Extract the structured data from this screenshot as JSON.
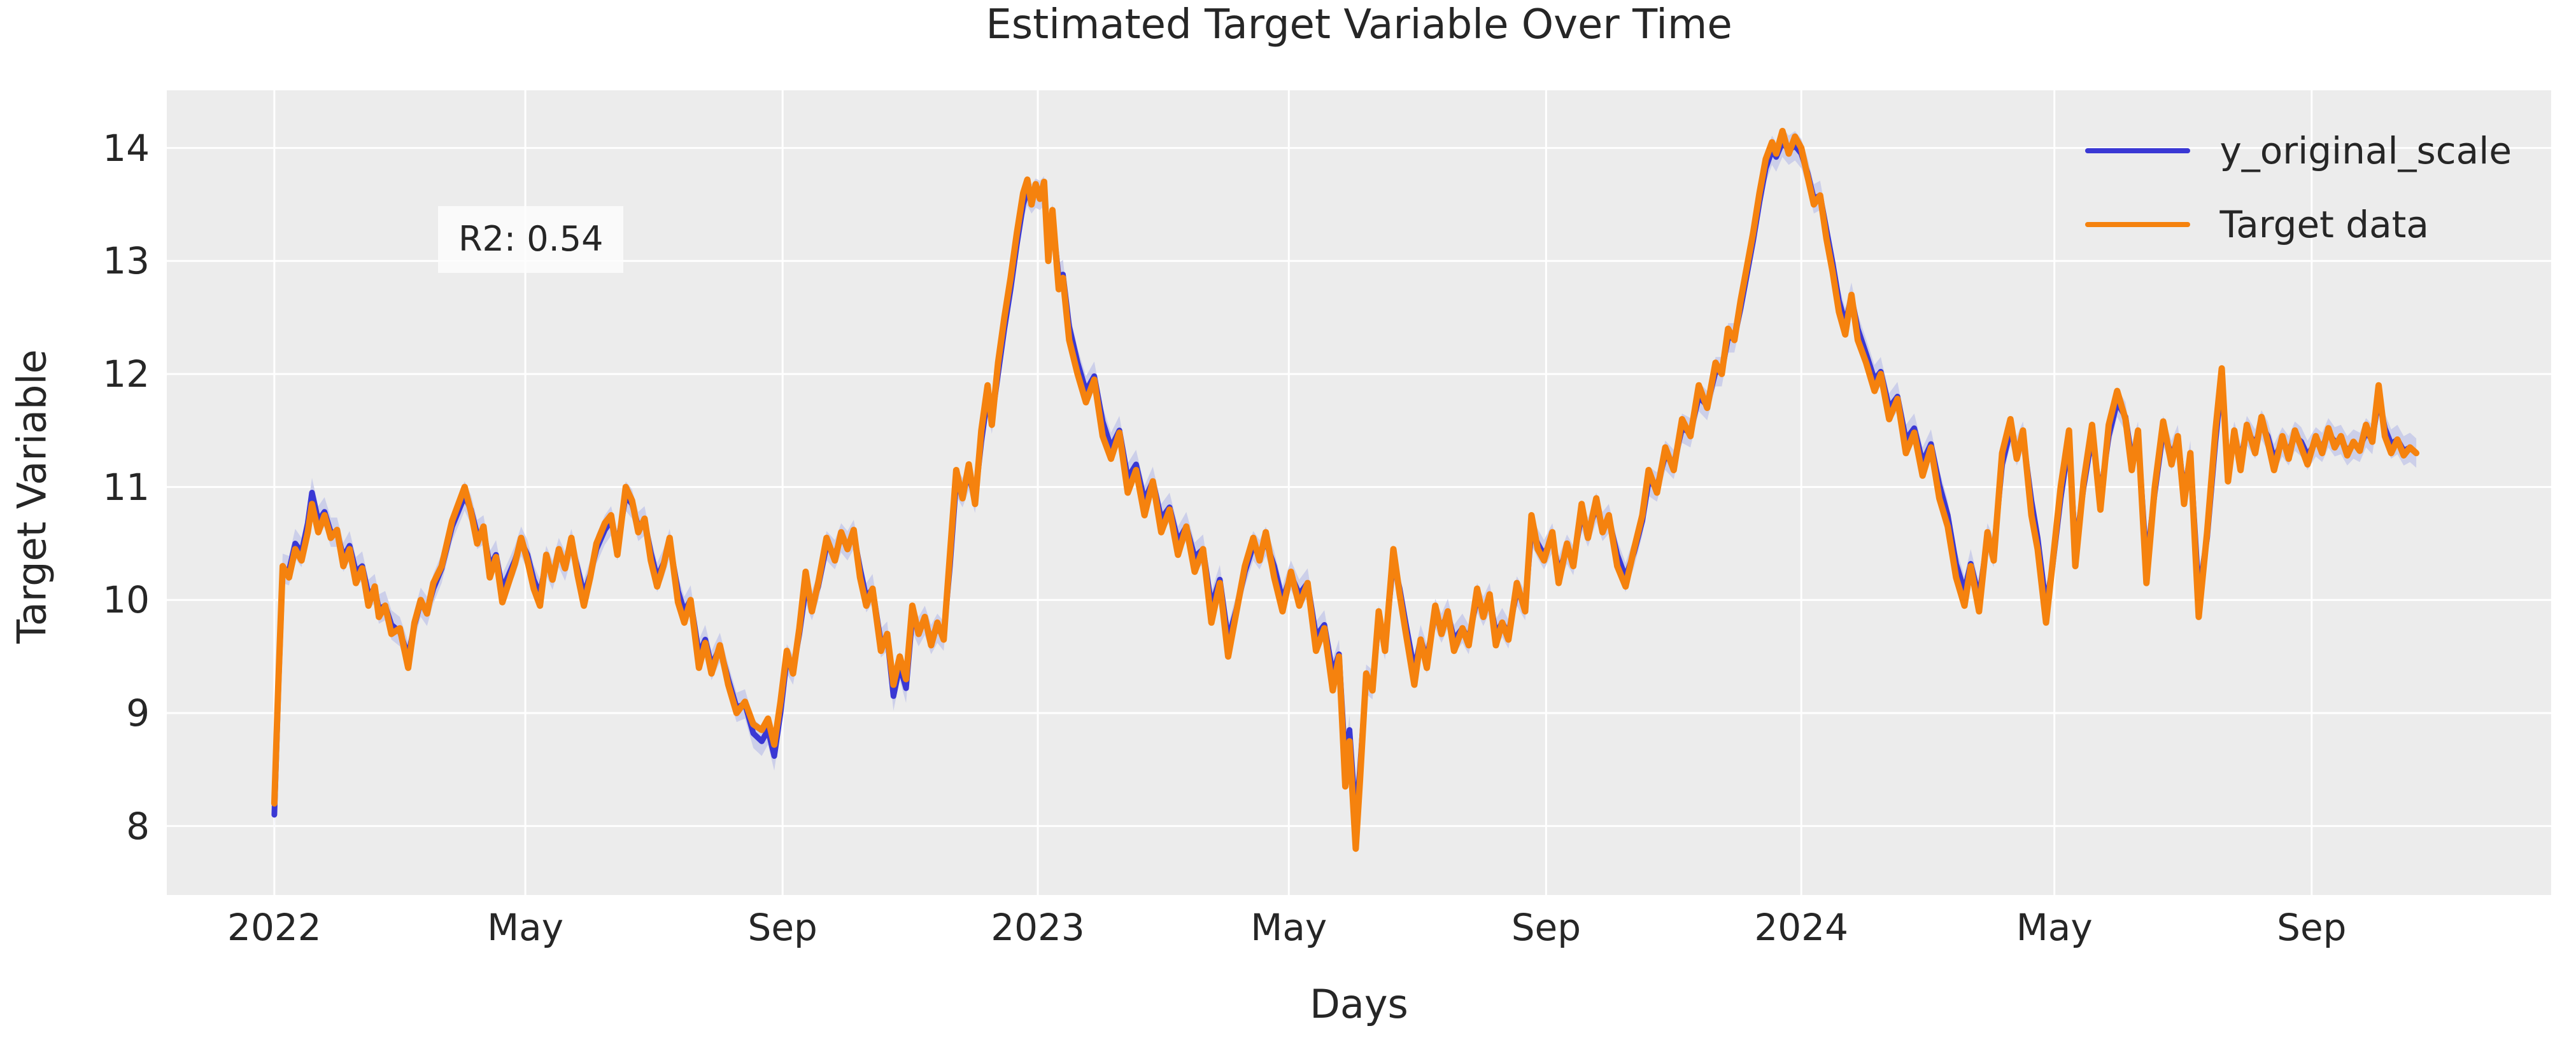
{
  "chart_data": {
    "type": "line",
    "title": "Estimated Target Variable Over Time",
    "xlabel": "Days",
    "ylabel": "Target Variable",
    "annotation": "R2: 0.54",
    "grid": true,
    "legend_position": "upper right",
    "plot_bg_color": "#ececec",
    "grid_color": "#ffffff",
    "text_color": "#262626",
    "ylim": [
      7.39,
      14.51
    ],
    "xlim_days": [
      -51.4,
      1088.5
    ],
    "y_ticks": [
      8,
      9,
      10,
      11,
      12,
      13,
      14
    ],
    "x_ticks": [
      {
        "day": 0,
        "label": "2022"
      },
      {
        "day": 120,
        "label": "May"
      },
      {
        "day": 243,
        "label": "Sep"
      },
      {
        "day": 365,
        "label": "2023"
      },
      {
        "day": 485,
        "label": "May"
      },
      {
        "day": 608,
        "label": "Sep"
      },
      {
        "day": 730,
        "label": "2024"
      },
      {
        "day": 851,
        "label": "May"
      },
      {
        "day": 974,
        "label": "Sep"
      }
    ],
    "series": [
      {
        "name": "y_original_scale",
        "color": "#3a38d4",
        "band": {
          "color": "#c9cce9",
          "opacity": 0.9,
          "halfwidth": 0.13
        }
      },
      {
        "name": "Target data",
        "color": "#f5820e"
      }
    ],
    "points_format": [
      "day_since_2022_01_01",
      "target_data",
      "y_original_scale"
    ],
    "points": [
      [
        0,
        8.2,
        8.1
      ],
      [
        2,
        9.3,
        9.25
      ],
      [
        4,
        10.3,
        10.28
      ],
      [
        7,
        10.2,
        10.26
      ],
      [
        10,
        10.45,
        10.5
      ],
      [
        13,
        10.35,
        10.42
      ],
      [
        16,
        10.6,
        10.68
      ],
      [
        18,
        10.85,
        10.95
      ],
      [
        21,
        10.6,
        10.7
      ],
      [
        24,
        10.75,
        10.78
      ],
      [
        27,
        10.55,
        10.6
      ],
      [
        30,
        10.62,
        10.6
      ],
      [
        33,
        10.3,
        10.38
      ],
      [
        36,
        10.45,
        10.48
      ],
      [
        39,
        10.15,
        10.25
      ],
      [
        42,
        10.28,
        10.3
      ],
      [
        45,
        9.95,
        10.05
      ],
      [
        48,
        10.12,
        10.1
      ],
      [
        50,
        9.85,
        9.92
      ],
      [
        53,
        9.95,
        9.95
      ],
      [
        56,
        9.7,
        9.78
      ],
      [
        60,
        9.75,
        9.72
      ],
      [
        64,
        9.4,
        9.5
      ],
      [
        67,
        9.8,
        9.78
      ],
      [
        70,
        10.0,
        9.98
      ],
      [
        73,
        9.88,
        9.9
      ],
      [
        76,
        10.15,
        10.1
      ],
      [
        80,
        10.3,
        10.28
      ],
      [
        85,
        10.7,
        10.65
      ],
      [
        91,
        11.0,
        10.92
      ],
      [
        94,
        10.78,
        10.8
      ],
      [
        97,
        10.5,
        10.58
      ],
      [
        100,
        10.65,
        10.62
      ],
      [
        103,
        10.2,
        10.3
      ],
      [
        106,
        10.38,
        10.4
      ],
      [
        109,
        9.98,
        10.1
      ],
      [
        112,
        10.15,
        10.22
      ],
      [
        115,
        10.32,
        10.35
      ],
      [
        118,
        10.55,
        10.52
      ],
      [
        121,
        10.35,
        10.4
      ],
      [
        124,
        10.1,
        10.18
      ],
      [
        127,
        9.95,
        10.05
      ],
      [
        130,
        10.4,
        10.35
      ],
      [
        133,
        10.18,
        10.22
      ],
      [
        136,
        10.45,
        10.42
      ],
      [
        139,
        10.28,
        10.3
      ],
      [
        142,
        10.55,
        10.5
      ],
      [
        145,
        10.22,
        10.28
      ],
      [
        148,
        9.95,
        10.05
      ],
      [
        151,
        10.2,
        10.22
      ],
      [
        154,
        10.5,
        10.45
      ],
      [
        158,
        10.68,
        10.62
      ],
      [
        161,
        10.75,
        10.7
      ],
      [
        164,
        10.4,
        10.48
      ],
      [
        168,
        11.0,
        10.92
      ],
      [
        171,
        10.88,
        10.85
      ],
      [
        174,
        10.6,
        10.65
      ],
      [
        177,
        10.72,
        10.7
      ],
      [
        180,
        10.35,
        10.42
      ],
      [
        183,
        10.12,
        10.2
      ],
      [
        186,
        10.3,
        10.32
      ],
      [
        189,
        10.55,
        10.5
      ],
      [
        193,
        9.98,
        10.08
      ],
      [
        196,
        9.8,
        9.9
      ],
      [
        199,
        10.0,
        10.0
      ],
      [
        203,
        9.4,
        9.52
      ],
      [
        206,
        9.62,
        9.65
      ],
      [
        209,
        9.35,
        9.42
      ],
      [
        213,
        9.6,
        9.58
      ],
      [
        217,
        9.25,
        9.3
      ],
      [
        221,
        9.0,
        9.05
      ],
      [
        225,
        9.1,
        9.08
      ],
      [
        229,
        8.9,
        8.82
      ],
      [
        233,
        8.85,
        8.75
      ],
      [
        236,
        8.95,
        8.85
      ],
      [
        239,
        8.72,
        8.62
      ],
      [
        242,
        9.1,
        9.0
      ],
      [
        245,
        9.55,
        9.48
      ],
      [
        248,
        9.35,
        9.38
      ],
      [
        251,
        9.75,
        9.7
      ],
      [
        254,
        10.25,
        10.1
      ],
      [
        257,
        9.9,
        9.95
      ],
      [
        260,
        10.15,
        10.12
      ],
      [
        264,
        10.55,
        10.48
      ],
      [
        268,
        10.35,
        10.4
      ],
      [
        271,
        10.6,
        10.55
      ],
      [
        274,
        10.45,
        10.48
      ],
      [
        277,
        10.62,
        10.58
      ],
      [
        280,
        10.2,
        10.28
      ],
      [
        283,
        9.95,
        10.02
      ],
      [
        286,
        10.1,
        10.1
      ],
      [
        290,
        9.55,
        9.62
      ],
      [
        293,
        9.7,
        9.68
      ],
      [
        296,
        9.25,
        9.15
      ],
      [
        299,
        9.5,
        9.42
      ],
      [
        302,
        9.3,
        9.22
      ],
      [
        305,
        9.95,
        9.85
      ],
      [
        308,
        9.7,
        9.72
      ],
      [
        311,
        9.85,
        9.82
      ],
      [
        314,
        9.6,
        9.65
      ],
      [
        317,
        9.8,
        9.75
      ],
      [
        320,
        9.65,
        9.68
      ],
      [
        323,
        10.4,
        10.3
      ],
      [
        326,
        11.15,
        11.05
      ],
      [
        329,
        10.9,
        10.95
      ],
      [
        332,
        11.2,
        11.1
      ],
      [
        335,
        10.85,
        10.9
      ],
      [
        338,
        11.5,
        11.4
      ],
      [
        341,
        11.9,
        11.8
      ],
      [
        343,
        11.55,
        11.6
      ],
      [
        346,
        12.1,
        12.0
      ],
      [
        349,
        12.5,
        12.4
      ],
      [
        352,
        12.85,
        12.75
      ],
      [
        355,
        13.25,
        13.15
      ],
      [
        358,
        13.6,
        13.5
      ],
      [
        360,
        13.72,
        13.62
      ],
      [
        362,
        13.5,
        13.55
      ],
      [
        364,
        13.68,
        13.6
      ],
      [
        366,
        13.55,
        13.58
      ],
      [
        368,
        13.7,
        13.62
      ],
      [
        370,
        13.0,
        13.1
      ],
      [
        372,
        13.45,
        13.38
      ],
      [
        375,
        12.75,
        12.85
      ],
      [
        377,
        12.85,
        12.88
      ],
      [
        380,
        12.3,
        12.42
      ],
      [
        384,
        12.0,
        12.1
      ],
      [
        388,
        11.75,
        11.85
      ],
      [
        392,
        11.95,
        11.98
      ],
      [
        396,
        11.45,
        11.58
      ],
      [
        400,
        11.25,
        11.35
      ],
      [
        404,
        11.48,
        11.5
      ],
      [
        408,
        10.95,
        11.08
      ],
      [
        412,
        11.15,
        11.2
      ],
      [
        416,
        10.75,
        10.88
      ],
      [
        420,
        11.05,
        11.05
      ],
      [
        424,
        10.6,
        10.72
      ],
      [
        428,
        10.8,
        10.82
      ],
      [
        432,
        10.4,
        10.52
      ],
      [
        436,
        10.65,
        10.65
      ],
      [
        440,
        10.25,
        10.38
      ],
      [
        444,
        10.45,
        10.45
      ],
      [
        448,
        9.8,
        9.95
      ],
      [
        452,
        10.15,
        10.18
      ],
      [
        456,
        9.5,
        9.65
      ],
      [
        460,
        9.9,
        9.92
      ],
      [
        464,
        10.3,
        10.25
      ],
      [
        468,
        10.55,
        10.48
      ],
      [
        471,
        10.35,
        10.4
      ],
      [
        474,
        10.6,
        10.52
      ],
      [
        478,
        10.2,
        10.3
      ],
      [
        482,
        9.9,
        10.0
      ],
      [
        486,
        10.25,
        10.22
      ],
      [
        490,
        9.95,
        10.05
      ],
      [
        494,
        10.15,
        10.15
      ],
      [
        498,
        9.55,
        9.68
      ],
      [
        502,
        9.75,
        9.78
      ],
      [
        506,
        9.2,
        9.35
      ],
      [
        509,
        9.5,
        9.52
      ],
      [
        512,
        8.35,
        8.55
      ],
      [
        514,
        8.75,
        8.85
      ],
      [
        517,
        7.8,
        8.05
      ],
      [
        519,
        8.4,
        8.5
      ],
      [
        522,
        9.35,
        9.3
      ],
      [
        525,
        9.2,
        9.25
      ],
      [
        528,
        9.9,
        9.82
      ],
      [
        531,
        9.55,
        9.6
      ],
      [
        535,
        10.45,
        10.35
      ],
      [
        538,
        10.05,
        10.1
      ],
      [
        541,
        9.7,
        9.78
      ],
      [
        545,
        9.25,
        9.38
      ],
      [
        548,
        9.65,
        9.65
      ],
      [
        551,
        9.4,
        9.48
      ],
      [
        555,
        9.95,
        9.88
      ],
      [
        558,
        9.7,
        9.75
      ],
      [
        561,
        9.9,
        9.88
      ],
      [
        564,
        9.55,
        9.65
      ],
      [
        568,
        9.75,
        9.75
      ],
      [
        571,
        9.6,
        9.65
      ],
      [
        575,
        10.1,
        10.02
      ],
      [
        578,
        9.85,
        9.9
      ],
      [
        581,
        10.05,
        10.02
      ],
      [
        584,
        9.6,
        9.7
      ],
      [
        587,
        9.8,
        9.8
      ],
      [
        590,
        9.65,
        9.7
      ],
      [
        594,
        10.15,
        10.08
      ],
      [
        598,
        9.9,
        9.95
      ],
      [
        601,
        10.75,
        10.62
      ],
      [
        604,
        10.45,
        10.5
      ],
      [
        607,
        10.35,
        10.4
      ],
      [
        611,
        10.6,
        10.55
      ],
      [
        614,
        10.15,
        10.25
      ],
      [
        618,
        10.5,
        10.45
      ],
      [
        621,
        10.3,
        10.35
      ],
      [
        625,
        10.85,
        10.75
      ],
      [
        628,
        10.55,
        10.6
      ],
      [
        632,
        10.9,
        10.82
      ],
      [
        635,
        10.6,
        10.65
      ],
      [
        638,
        10.75,
        10.72
      ],
      [
        642,
        10.3,
        10.4
      ],
      [
        646,
        10.12,
        10.2
      ],
      [
        650,
        10.45,
        10.42
      ],
      [
        654,
        10.75,
        10.7
      ],
      [
        657,
        11.15,
        11.05
      ],
      [
        661,
        10.95,
        11.0
      ],
      [
        665,
        11.35,
        11.28
      ],
      [
        669,
        11.15,
        11.2
      ],
      [
        673,
        11.6,
        11.52
      ],
      [
        677,
        11.45,
        11.48
      ],
      [
        681,
        11.9,
        11.8
      ],
      [
        685,
        11.7,
        11.72
      ],
      [
        689,
        12.1,
        12.02
      ],
      [
        692,
        12.0,
        12.02
      ],
      [
        695,
        12.4,
        12.32
      ],
      [
        698,
        12.3,
        12.32
      ],
      [
        701,
        12.65,
        12.58
      ],
      [
        704,
        12.95,
        12.88
      ],
      [
        707,
        13.25,
        13.18
      ],
      [
        710,
        13.6,
        13.52
      ],
      [
        713,
        13.9,
        13.82
      ],
      [
        716,
        14.05,
        13.98
      ],
      [
        718,
        13.95,
        13.92
      ],
      [
        721,
        14.15,
        14.05
      ],
      [
        724,
        13.95,
        13.98
      ],
      [
        727,
        14.1,
        14.02
      ],
      [
        730,
        14.0,
        13.95
      ],
      [
        733,
        13.75,
        13.78
      ],
      [
        736,
        13.5,
        13.55
      ],
      [
        739,
        13.58,
        13.58
      ],
      [
        742,
        13.2,
        13.28
      ],
      [
        745,
        12.9,
        12.98
      ],
      [
        748,
        12.55,
        12.65
      ],
      [
        751,
        12.35,
        12.45
      ],
      [
        754,
        12.7,
        12.68
      ],
      [
        757,
        12.3,
        12.4
      ],
      [
        761,
        12.1,
        12.18
      ],
      [
        765,
        11.85,
        11.95
      ],
      [
        768,
        12.0,
        12.02
      ],
      [
        772,
        11.6,
        11.7
      ],
      [
        776,
        11.78,
        11.8
      ],
      [
        780,
        11.3,
        11.42
      ],
      [
        784,
        11.48,
        11.52
      ],
      [
        788,
        11.1,
        11.22
      ],
      [
        792,
        11.35,
        11.38
      ],
      [
        796,
        10.9,
        11.02
      ],
      [
        800,
        10.65,
        10.75
      ],
      [
        804,
        10.2,
        10.32
      ],
      [
        808,
        9.95,
        10.08
      ],
      [
        811,
        10.3,
        10.32
      ],
      [
        815,
        9.9,
        10.02
      ],
      [
        819,
        10.6,
        10.55
      ],
      [
        822,
        10.35,
        10.42
      ],
      [
        826,
        11.3,
        11.2
      ],
      [
        830,
        11.6,
        11.5
      ],
      [
        833,
        11.25,
        11.32
      ],
      [
        836,
        11.5,
        11.45
      ],
      [
        840,
        10.75,
        10.88
      ],
      [
        843,
        10.45,
        10.55
      ],
      [
        847,
        9.8,
        9.95
      ],
      [
        850,
        10.3,
        10.28
      ],
      [
        854,
        11.0,
        10.9
      ],
      [
        858,
        11.5,
        11.4
      ],
      [
        861,
        10.3,
        10.45
      ],
      [
        865,
        11.05,
        11.0
      ],
      [
        869,
        11.55,
        11.45
      ],
      [
        873,
        10.8,
        10.92
      ],
      [
        877,
        11.55,
        11.45
      ],
      [
        881,
        11.85,
        11.75
      ],
      [
        885,
        11.6,
        11.62
      ],
      [
        888,
        11.15,
        11.25
      ],
      [
        891,
        11.5,
        11.45
      ],
      [
        895,
        10.15,
        10.32
      ],
      [
        899,
        11.0,
        10.95
      ],
      [
        903,
        11.58,
        11.5
      ],
      [
        907,
        11.2,
        11.28
      ],
      [
        910,
        11.45,
        11.42
      ],
      [
        913,
        10.85,
        10.95
      ],
      [
        916,
        11.3,
        11.28
      ],
      [
        920,
        9.85,
        10.05
      ],
      [
        924,
        10.6,
        10.55
      ],
      [
        928,
        11.5,
        11.4
      ],
      [
        931,
        12.05,
        11.95
      ],
      [
        934,
        11.05,
        11.15
      ],
      [
        937,
        11.5,
        11.45
      ],
      [
        940,
        11.15,
        11.25
      ],
      [
        943,
        11.55,
        11.5
      ],
      [
        947,
        11.3,
        11.38
      ],
      [
        950,
        11.62,
        11.55
      ],
      [
        953,
        11.4,
        11.45
      ],
      [
        956,
        11.15,
        11.25
      ],
      [
        960,
        11.45,
        11.4
      ],
      [
        963,
        11.25,
        11.32
      ],
      [
        966,
        11.5,
        11.45
      ],
      [
        969,
        11.35,
        11.4
      ],
      [
        972,
        11.2,
        11.28
      ],
      [
        976,
        11.45,
        11.4
      ],
      [
        979,
        11.3,
        11.35
      ],
      [
        982,
        11.52,
        11.48
      ],
      [
        985,
        11.35,
        11.4
      ],
      [
        988,
        11.45,
        11.42
      ],
      [
        991,
        11.28,
        11.32
      ],
      [
        994,
        11.4,
        11.38
      ],
      [
        997,
        11.32,
        11.35
      ],
      [
        1000,
        11.55,
        11.48
      ],
      [
        1003,
        11.4,
        11.42
      ],
      [
        1006,
        11.9,
        11.78
      ],
      [
        1009,
        11.45,
        11.52
      ],
      [
        1012,
        11.3,
        11.38
      ],
      [
        1015,
        11.42,
        11.42
      ],
      [
        1018,
        11.28,
        11.32
      ],
      [
        1021,
        11.35,
        11.35
      ],
      [
        1024,
        11.3,
        11.3
      ]
    ]
  }
}
